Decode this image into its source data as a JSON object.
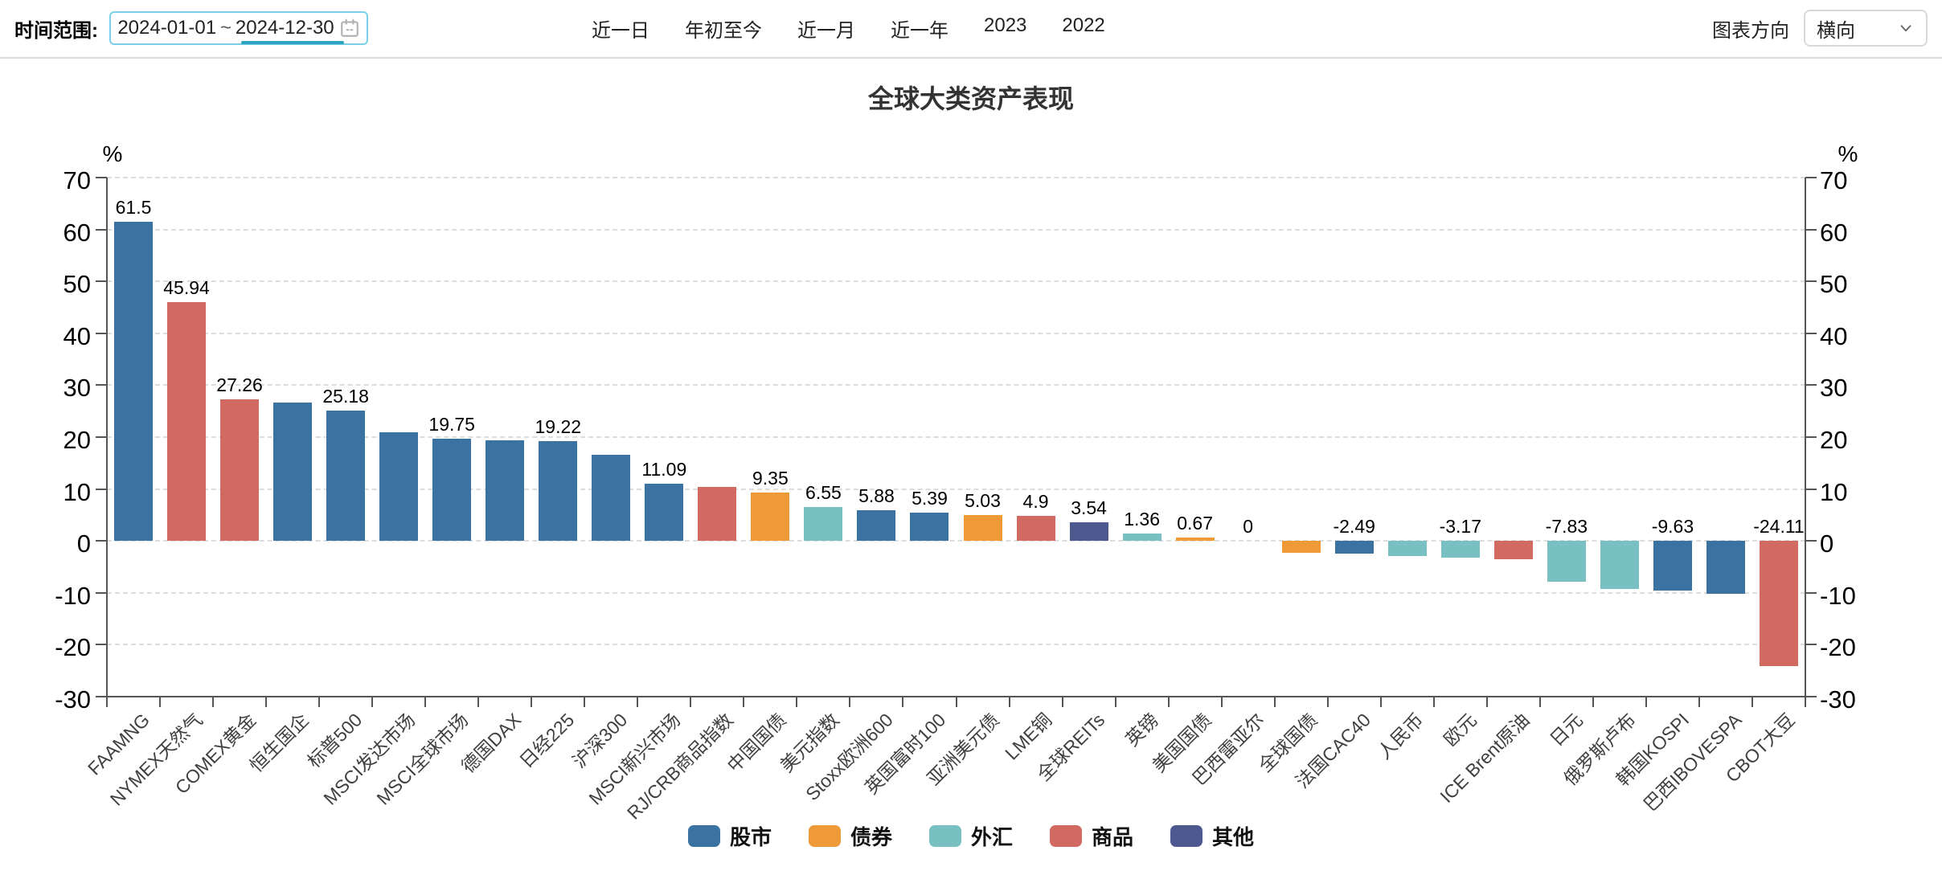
{
  "toolbar": {
    "date_range_label": "时间范围:",
    "date_start": "2024-01-01",
    "date_separator": "~",
    "date_end": "2024-12-30",
    "quick_ranges": [
      "近一日",
      "年初至今",
      "近一月",
      "近一年",
      "2023",
      "2022"
    ],
    "orientation_label": "图表方向",
    "orientation_value": "横向"
  },
  "chart_data": {
    "type": "bar",
    "title": "全球大类资产表现",
    "y_axis": {
      "name": "%",
      "min": -30,
      "max": 70,
      "tick_step": 10,
      "ticks": [
        70,
        60,
        50,
        40,
        30,
        20,
        10,
        0,
        -10,
        -20,
        -30
      ]
    },
    "legend_position": "bottom",
    "grid": "dashed-horizontal",
    "groups": {
      "股市": "#3a72a1",
      "债券": "#ee9a38",
      "外汇": "#79c0c2",
      "商品": "#d16a62",
      "其他": "#4e5a8f"
    },
    "legend": [
      {
        "name": "股市",
        "color": "#3a72a1"
      },
      {
        "name": "债券",
        "color": "#ee9a38"
      },
      {
        "name": "外汇",
        "color": "#79c0c2"
      },
      {
        "name": "商品",
        "color": "#d16a62"
      },
      {
        "name": "其他",
        "color": "#4e5a8f"
      }
    ],
    "bars": [
      {
        "category": "FAAMNG",
        "value": 61.5,
        "group": "股市",
        "label": "61.5"
      },
      {
        "category": "NYMEX天然气",
        "value": 45.94,
        "group": "商品",
        "label": "45.94"
      },
      {
        "category": "COMEX黄金",
        "value": 27.26,
        "group": "商品",
        "label": "27.26"
      },
      {
        "category": "恒生国企",
        "value": 26.7,
        "group": "股市",
        "label": ""
      },
      {
        "category": "标普500",
        "value": 25.18,
        "group": "股市",
        "label": "25.18"
      },
      {
        "category": "MSCI发达市场",
        "value": 20.9,
        "group": "股市",
        "label": ""
      },
      {
        "category": "MSCI全球市场",
        "value": 19.75,
        "group": "股市",
        "label": "19.75"
      },
      {
        "category": "德国DAX",
        "value": 19.4,
        "group": "股市",
        "label": ""
      },
      {
        "category": "日经225",
        "value": 19.22,
        "group": "股市",
        "label": "19.22"
      },
      {
        "category": "沪深300",
        "value": 16.6,
        "group": "股市",
        "label": ""
      },
      {
        "category": "MSCI新兴市场",
        "value": 11.09,
        "group": "股市",
        "label": "11.09"
      },
      {
        "category": "RJ/CRB商品指数",
        "value": 10.4,
        "group": "商品",
        "label": ""
      },
      {
        "category": "中国国债",
        "value": 9.35,
        "group": "债券",
        "label": "9.35"
      },
      {
        "category": "美元指数",
        "value": 6.55,
        "group": "外汇",
        "label": "6.55"
      },
      {
        "category": "Stoxx欧洲600",
        "value": 5.88,
        "group": "股市",
        "label": "5.88"
      },
      {
        "category": "英国富时100",
        "value": 5.39,
        "group": "股市",
        "label": "5.39"
      },
      {
        "category": "亚洲美元债",
        "value": 5.03,
        "group": "债券",
        "label": "5.03"
      },
      {
        "category": "LME铜",
        "value": 4.9,
        "group": "商品",
        "label": "4.9"
      },
      {
        "category": "全球REITs",
        "value": 3.54,
        "group": "其他",
        "label": "3.54"
      },
      {
        "category": "英镑",
        "value": 1.36,
        "group": "外汇",
        "label": "1.36"
      },
      {
        "category": "美国国债",
        "value": 0.67,
        "group": "债券",
        "label": "0.67"
      },
      {
        "category": "巴西雷亚尔",
        "value": 0,
        "group": "外汇",
        "label": "0"
      },
      {
        "category": "全球国债",
        "value": -2.25,
        "group": "债券",
        "label": ""
      },
      {
        "category": "法国CAC40",
        "value": -2.49,
        "group": "股市",
        "label": "-2.49"
      },
      {
        "category": "人民币",
        "value": -2.9,
        "group": "外汇",
        "label": ""
      },
      {
        "category": "欧元",
        "value": -3.17,
        "group": "外汇",
        "label": "-3.17"
      },
      {
        "category": "ICE Brent原油",
        "value": -3.6,
        "group": "商品",
        "label": ""
      },
      {
        "category": "日元",
        "value": -7.83,
        "group": "外汇",
        "label": "-7.83"
      },
      {
        "category": "俄罗斯卢布",
        "value": -9.2,
        "group": "外汇",
        "label": ""
      },
      {
        "category": "韩国KOSPI",
        "value": -9.63,
        "group": "股市",
        "label": "-9.63"
      },
      {
        "category": "巴西IBOVESPA",
        "value": -10.2,
        "group": "股市",
        "label": ""
      },
      {
        "category": "CBOT大豆",
        "value": -24.11,
        "group": "商品",
        "label": "-24.11"
      }
    ]
  }
}
